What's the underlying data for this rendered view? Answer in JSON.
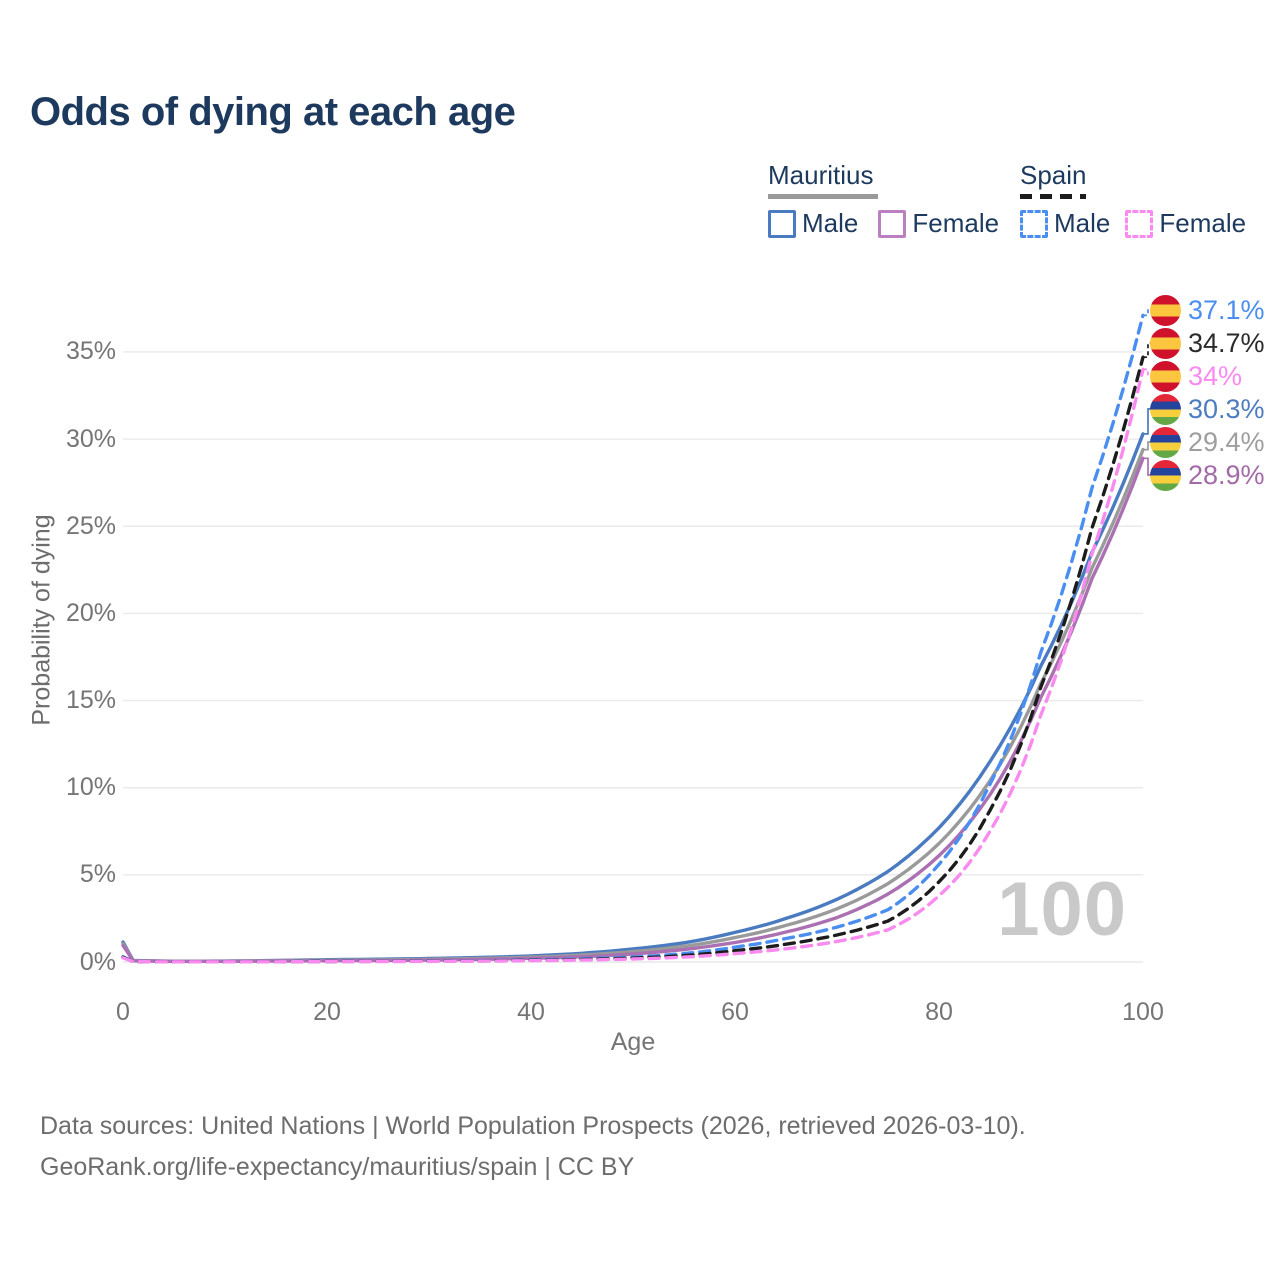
{
  "header": {
    "title": "Odds of dying at each age"
  },
  "legend": {
    "groups": [
      {
        "label": "Mauritius",
        "line_style": "solid",
        "color": "#9a9a9a",
        "items": [
          {
            "label": "Male",
            "color": "#4a7bc0"
          },
          {
            "label": "Female",
            "color": "#bb80c2"
          }
        ]
      },
      {
        "label": "Spain",
        "line_style": "dashed",
        "color": "#1c1c1c",
        "items": [
          {
            "label": "Male",
            "color": "#4a8ef0"
          },
          {
            "label": "Female",
            "color": "#f98af0"
          }
        ]
      }
    ]
  },
  "chart_data": {
    "type": "line",
    "title": "Odds of dying at each age",
    "xlabel": "Age",
    "ylabel": "Probability of dying",
    "x_ticks": [
      "0",
      "20",
      "40",
      "60",
      "80",
      "100"
    ],
    "y_ticks": [
      "0%",
      "5%",
      "10%",
      "15%",
      "20%",
      "25%",
      "30%",
      "35%"
    ],
    "xlim": [
      0,
      100
    ],
    "ylim": [
      0,
      37.5
    ],
    "y_unit": "percent",
    "grid": "horizontal",
    "watermark": "100",
    "ages": [
      0,
      1,
      5,
      10,
      15,
      20,
      25,
      30,
      35,
      40,
      45,
      50,
      55,
      60,
      65,
      70,
      75,
      80,
      85,
      90,
      95,
      100
    ],
    "series": [
      {
        "id": "mauritius-male",
        "country": "Mauritius",
        "sex": "Male",
        "line": "solid",
        "color": "#4a7bc0",
        "end_value": 30.3,
        "values": [
          1.15,
          0.09,
          0.045,
          0.05,
          0.09,
          0.13,
          0.16,
          0.2,
          0.26,
          0.35,
          0.5,
          0.75,
          1.1,
          1.7,
          2.5,
          3.6,
          5.2,
          7.7,
          11.5,
          17.0,
          23.5,
          30.3
        ]
      },
      {
        "id": "mauritius-both",
        "country": "Mauritius",
        "sex": "Both",
        "line": "solid",
        "color": "#9a9a9a",
        "end_value": 29.4,
        "values": [
          1.05,
          0.08,
          0.04,
          0.045,
          0.075,
          0.1,
          0.12,
          0.155,
          0.205,
          0.28,
          0.4,
          0.6,
          0.9,
          1.4,
          2.1,
          3.05,
          4.5,
          6.8,
          10.4,
          16.0,
          22.6,
          29.4
        ]
      },
      {
        "id": "mauritius-female",
        "country": "Mauritius",
        "sex": "Female",
        "line": "solid",
        "color": "#aa70b2",
        "end_value": 28.9,
        "values": [
          0.95,
          0.07,
          0.035,
          0.04,
          0.055,
          0.07,
          0.085,
          0.11,
          0.15,
          0.21,
          0.3,
          0.46,
          0.72,
          1.12,
          1.72,
          2.55,
          3.9,
          6.1,
          9.6,
          15.2,
          22.0,
          28.9
        ]
      },
      {
        "id": "spain-male",
        "country": "Spain",
        "sex": "Male",
        "line": "dashed",
        "color": "#4a8ef0",
        "end_value": 37.1,
        "values": [
          0.3,
          0.025,
          0.012,
          0.012,
          0.02,
          0.04,
          0.05,
          0.06,
          0.08,
          0.12,
          0.18,
          0.28,
          0.48,
          0.85,
          1.35,
          2.0,
          3.0,
          5.6,
          10.2,
          17.8,
          27.2,
          37.1
        ]
      },
      {
        "id": "spain-both",
        "country": "Spain",
        "sex": "Both",
        "line": "dashed",
        "color": "#1c1c1c",
        "end_value": 34.7,
        "values": [
          0.27,
          0.022,
          0.01,
          0.01,
          0.017,
          0.03,
          0.038,
          0.048,
          0.065,
          0.095,
          0.14,
          0.22,
          0.37,
          0.65,
          1.02,
          1.55,
          2.35,
          4.6,
          8.7,
          15.8,
          24.9,
          34.7
        ]
      },
      {
        "id": "spain-female",
        "country": "Spain",
        "sex": "Female",
        "line": "dashed",
        "color": "#f98af0",
        "end_value": 34.0,
        "values": [
          0.24,
          0.02,
          0.009,
          0.009,
          0.013,
          0.022,
          0.027,
          0.035,
          0.05,
          0.075,
          0.11,
          0.17,
          0.28,
          0.48,
          0.76,
          1.18,
          1.85,
          3.8,
          7.5,
          14.2,
          23.4,
          34.0
        ]
      }
    ],
    "end_labels": [
      {
        "text": "37.1%",
        "color": "#4a8ef0",
        "flag": "spain",
        "series": "spain-male"
      },
      {
        "text": "34.7%",
        "color": "#2b2b2b",
        "flag": "spain",
        "series": "spain-both"
      },
      {
        "text": "34%",
        "color": "#f98af0",
        "flag": "spain",
        "series": "spain-female"
      },
      {
        "text": "30.3%",
        "color": "#4d7cc0",
        "flag": "mauritius",
        "series": "mauritius-male"
      },
      {
        "text": "29.4%",
        "color": "#9e9e9e",
        "flag": "mauritius",
        "series": "mauritius-both"
      },
      {
        "text": "28.9%",
        "color": "#a26ba8",
        "flag": "mauritius",
        "series": "mauritius-female"
      }
    ]
  },
  "footer": {
    "line1": "Data sources: United Nations | World Population Prospects (2026, retrieved 2026-03-10).",
    "line2": "GeoRank.org/life-expectancy/mauritius/spain | CC BY"
  }
}
